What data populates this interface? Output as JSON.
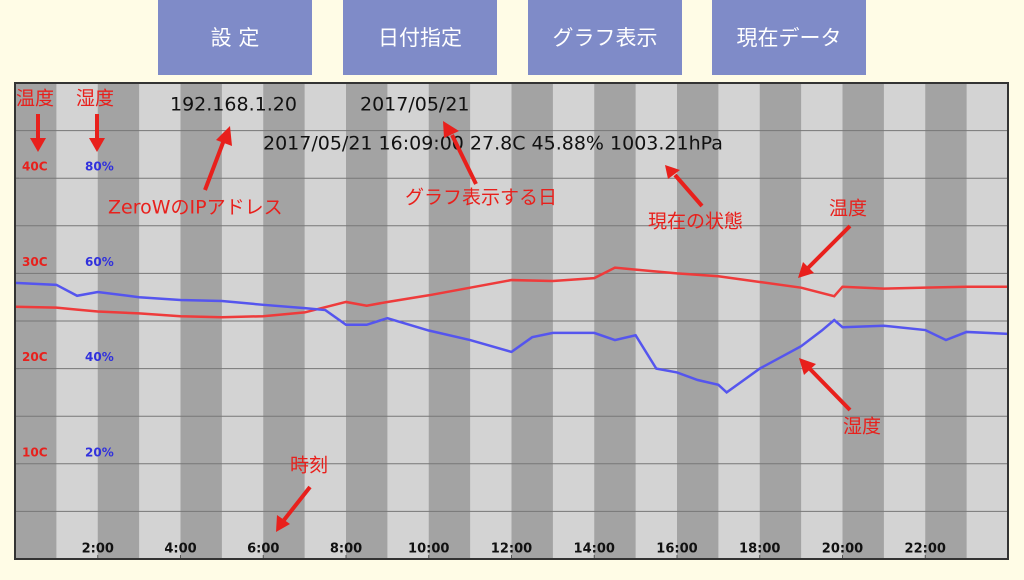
{
  "buttons": [
    "設 定",
    "日付指定",
    "グラフ表示",
    "現在データ"
  ],
  "info": {
    "ip": "192.168.1.20",
    "date": "2017/05/21",
    "status": "2017/05/21 16:09:00 27.8C 45.88% 1003.21hPa"
  },
  "annotations": {
    "temp_axis": "温度",
    "hum_axis": "湿度",
    "ip": "ZeroWのIPアドレス",
    "date": "グラフ表示する日",
    "status": "現在の状態",
    "temp_line": "温度",
    "hum_line": "湿度",
    "time": "時刻"
  },
  "chart_data": {
    "type": "line",
    "xlim": [
      0,
      24
    ],
    "xticks": [
      {
        "value": 2,
        "label": "2:00"
      },
      {
        "value": 4,
        "label": "4:00"
      },
      {
        "value": 6,
        "label": "6:00"
      },
      {
        "value": 8,
        "label": "8:00"
      },
      {
        "value": 10,
        "label": "10:00"
      },
      {
        "value": 12,
        "label": "12:00"
      },
      {
        "value": 14,
        "label": "14:00"
      },
      {
        "value": 16,
        "label": "16:00"
      },
      {
        "value": 18,
        "label": "18:00"
      },
      {
        "value": 20,
        "label": "20:00"
      },
      {
        "value": 22,
        "label": "22:00"
      }
    ],
    "ylim": [
      0,
      50
    ],
    "yticks": [
      {
        "value": 10,
        "label": "10C"
      },
      {
        "value": 20,
        "label": "20C"
      },
      {
        "value": 30,
        "label": "30C"
      },
      {
        "value": 40,
        "label": "40C"
      }
    ],
    "yminor": [
      5,
      15,
      25,
      35,
      45
    ],
    "y2lim": [
      0,
      100
    ],
    "y2ticks": [
      {
        "value": 20,
        "label": "20%"
      },
      {
        "value": 40,
        "label": "40%"
      },
      {
        "value": 60,
        "label": "60%"
      },
      {
        "value": 80,
        "label": "80%"
      }
    ],
    "series": [
      {
        "name": "温度",
        "color": "#ee3b3b",
        "x": [
          0,
          1,
          1.5,
          2,
          3,
          4,
          5,
          6,
          7,
          8,
          8.5,
          9,
          10,
          11,
          12,
          13,
          14,
          14.5,
          15,
          16,
          17,
          18,
          19,
          19.8,
          20,
          21,
          22,
          23,
          24
        ],
        "values": [
          26.5,
          26.4,
          26.2,
          26,
          25.8,
          25.5,
          25.4,
          25.5,
          25.9,
          27,
          26.6,
          27,
          27.7,
          28.5,
          29.3,
          29.2,
          29.5,
          30.6,
          30.4,
          30,
          29.7,
          29.1,
          28.5,
          27.6,
          28.6,
          28.4,
          28.5,
          28.6,
          28.6
        ]
      },
      {
        "name": "湿度",
        "color": "#5555ee",
        "axis": "y2",
        "x": [
          0,
          1,
          1.5,
          2,
          3,
          4,
          5,
          6,
          7,
          7.5,
          8,
          8.5,
          9,
          10,
          11,
          12,
          12.5,
          13,
          14,
          14.5,
          15,
          15.5,
          16,
          16.5,
          17,
          17.2,
          18,
          19,
          19.5,
          19.8,
          20,
          21,
          22,
          22.5,
          23,
          24
        ],
        "values": [
          58,
          57.6,
          55.3,
          56.1,
          55,
          54.4,
          54.2,
          53.4,
          52.7,
          52.3,
          49.2,
          49.2,
          50.6,
          48,
          46,
          43.5,
          46.6,
          47.5,
          47.5,
          46,
          47,
          40,
          39.2,
          37.6,
          36.6,
          35,
          40,
          44.7,
          48,
          50.2,
          48.7,
          49,
          48.1,
          46,
          47.7,
          47.3
        ]
      }
    ]
  }
}
